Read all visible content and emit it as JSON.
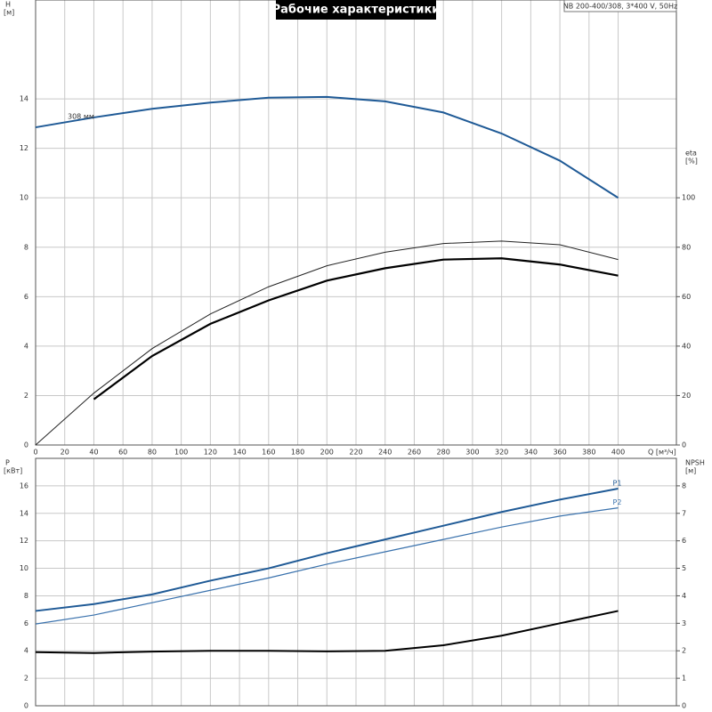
{
  "chart_data": [
    {
      "type": "line",
      "title": "Рабочие характеристики",
      "subtitle": "NB 200-400/308, 3*400 V, 50Hz",
      "annotation": "308 мм",
      "x_label": "Q [м³/ч]",
      "y_label": "H",
      "y_unit": "[м]",
      "y2_label": "eta",
      "y2_unit": "[%]",
      "x": [
        0,
        40,
        80,
        120,
        160,
        200,
        240,
        280,
        320,
        360,
        400
      ],
      "xlim": [
        0,
        440
      ],
      "xticks": [
        0,
        20,
        40,
        60,
        80,
        100,
        120,
        140,
        160,
        180,
        200,
        220,
        240,
        260,
        280,
        300,
        320,
        340,
        360,
        380,
        400
      ],
      "show_xtick_labels": true,
      "ylim": [
        0,
        18
      ],
      "yticks": [
        0,
        2,
        4,
        6,
        8,
        10,
        12,
        14
      ],
      "y2lim": [
        0,
        180
      ],
      "y2ticks": [
        0,
        20,
        40,
        60,
        80,
        100
      ],
      "grid": true,
      "series": [
        {
          "color": "#1f5a96",
          "width": 2,
          "values": [
            12.85,
            13.25,
            13.6,
            13.85,
            14.05,
            14.08,
            13.9,
            13.45,
            12.6,
            11.5,
            10.0
          ]
        },
        {
          "color": "#222222",
          "width": 1,
          "axis": "y2",
          "values": [
            0,
            21,
            39,
            53,
            64,
            72.5,
            78,
            81.5,
            82.5,
            81,
            75
          ]
        },
        {
          "color": "#000000",
          "width": 2.2,
          "axis": "y2",
          "values": [
            null,
            18.5,
            36,
            49,
            58.5,
            66.5,
            71.5,
            75,
            75.5,
            73,
            68.5
          ]
        }
      ]
    },
    {
      "type": "line",
      "y_label": "P",
      "y_unit": "[кВт]",
      "y2_label": "NPSH",
      "y2_unit": "[м]",
      "x": [
        0,
        40,
        80,
        120,
        160,
        200,
        240,
        280,
        320,
        360,
        400
      ],
      "xlim": [
        0,
        440
      ],
      "xticks": [
        0,
        20,
        40,
        60,
        80,
        100,
        120,
        140,
        160,
        180,
        200,
        220,
        240,
        260,
        280,
        300,
        320,
        340,
        360,
        380,
        400
      ],
      "show_xtick_labels": false,
      "ylim": [
        0,
        18
      ],
      "yticks": [
        0,
        2,
        4,
        6,
        8,
        10,
        12,
        14,
        16
      ],
      "y2lim": [
        0,
        9
      ],
      "y2ticks": [
        0,
        1,
        2,
        3,
        4,
        5,
        6,
        7,
        8
      ],
      "grid": true,
      "series": [
        {
          "name": "P1",
          "color": "#1f5a96",
          "width": 2,
          "values": [
            6.9,
            7.4,
            8.1,
            9.1,
            10.0,
            11.1,
            12.1,
            13.1,
            14.1,
            15.0,
            15.8
          ]
        },
        {
          "name": "P2",
          "color": "#3a72ad",
          "width": 1.2,
          "values": [
            5.95,
            6.6,
            7.5,
            8.4,
            9.3,
            10.3,
            11.2,
            12.1,
            13.0,
            13.8,
            14.4
          ]
        },
        {
          "color": "#000000",
          "width": 2,
          "axis": "y2",
          "values": [
            1.95,
            1.92,
            1.97,
            2.0,
            2.0,
            1.98,
            2.0,
            2.2,
            2.55,
            3.0,
            3.45
          ]
        }
      ]
    }
  ]
}
